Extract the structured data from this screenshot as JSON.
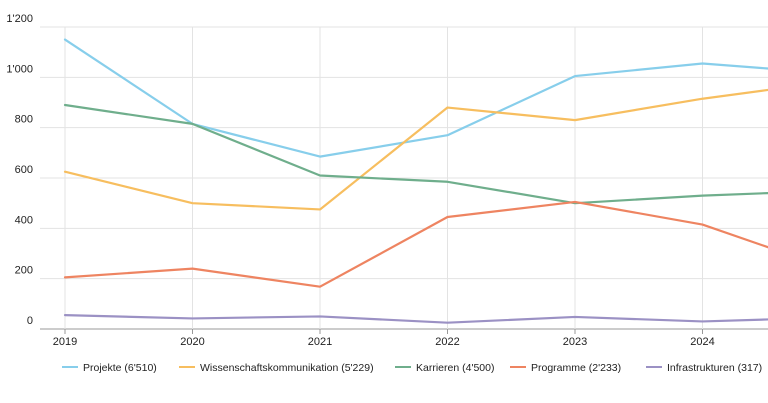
{
  "chart_data": {
    "type": "line",
    "x": [
      "2019",
      "2020",
      "2021",
      "2022",
      "2023",
      "2024"
    ],
    "y_ticks": [
      "0",
      "200",
      "400",
      "600",
      "800",
      "1'000",
      "1'200"
    ],
    "ylim": [
      0,
      1200
    ],
    "grid": true,
    "legend_position": "bottom",
    "series": [
      {
        "name": "Projekte (6'510)",
        "color": "#87CEEB",
        "values": [
          1150,
          815,
          685,
          770,
          1005,
          1055
        ],
        "end_value": 1035
      },
      {
        "name": "Wissenschaftskommunikation (5'229)",
        "color": "#F7BE5F",
        "values": [
          625,
          500,
          475,
          880,
          830,
          915
        ],
        "end_value": 950
      },
      {
        "name": "Karrieren (4'500)",
        "color": "#6FAE8C",
        "values": [
          890,
          815,
          610,
          585,
          500,
          530
        ],
        "end_value": 540
      },
      {
        "name": "Programme (2'233)",
        "color": "#EE8461",
        "values": [
          205,
          240,
          168,
          445,
          505,
          415
        ],
        "end_value": 325
      },
      {
        "name": "Infrastrukturen (317)",
        "color": "#9B91C4",
        "values": [
          55,
          42,
          50,
          25,
          48,
          30
        ],
        "end_value": 38
      }
    ]
  }
}
